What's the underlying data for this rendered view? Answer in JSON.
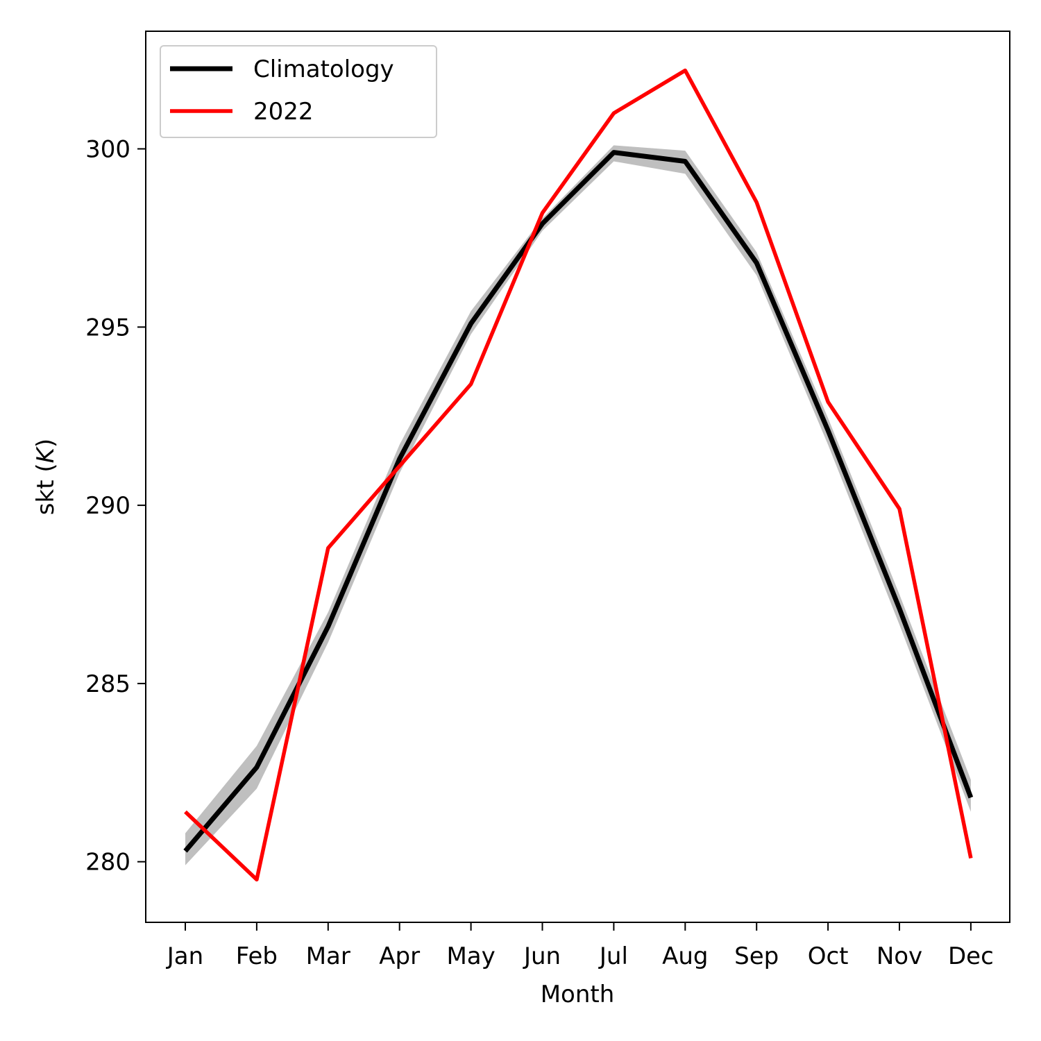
{
  "chart_data": {
    "type": "line",
    "xlabel": "Month",
    "ylabel": "skt (K)",
    "ylabel_parts": {
      "text": "skt (",
      "unit": "K",
      "close": ")"
    },
    "categories": [
      "Jan",
      "Feb",
      "Mar",
      "Apr",
      "May",
      "Jun",
      "Jul",
      "Aug",
      "Sep",
      "Oct",
      "Nov",
      "Dec"
    ],
    "ylim": [
      278.3,
      303.3
    ],
    "yticks": [
      280,
      285,
      290,
      295,
      300
    ],
    "grid": false,
    "legend": {
      "position": "top-left"
    },
    "series": [
      {
        "name": "Climatology",
        "color": "#000000",
        "values": [
          280.3,
          282.65,
          286.6,
          291.3,
          295.1,
          297.9,
          299.9,
          299.65,
          296.8,
          292.1,
          287.1,
          281.8
        ],
        "band_lower": [
          279.9,
          282.05,
          286.15,
          290.9,
          294.8,
          297.7,
          299.65,
          299.3,
          296.45,
          291.7,
          286.65,
          281.4
        ],
        "band_upper": [
          280.8,
          283.25,
          287.0,
          291.7,
          295.45,
          298.05,
          300.1,
          299.95,
          297.1,
          292.45,
          287.5,
          282.3
        ],
        "band_color": "#bfbfbf"
      },
      {
        "name": "2022",
        "color": "#ff0000",
        "values": [
          281.4,
          279.5,
          288.8,
          291.1,
          293.4,
          298.2,
          301.0,
          302.2,
          298.5,
          292.9,
          289.9,
          280.1
        ]
      }
    ]
  }
}
